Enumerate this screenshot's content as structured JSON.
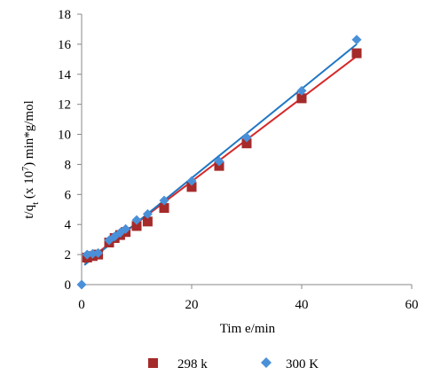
{
  "chart_data": {
    "type": "scatter",
    "title": "",
    "xlabel": "Tim e/min",
    "ylabel": "t/q_t (x 10⁷) min*g/mol",
    "ylabel_parts": {
      "t": "t/q",
      "sub": "t",
      "rest": " (x 10",
      "sup": "7",
      "tail": ") min*g/mol"
    },
    "xlim": [
      0,
      60
    ],
    "ylim": [
      0,
      18
    ],
    "xticks": [
      "0",
      "20",
      "40",
      "60"
    ],
    "yticks": [
      "0",
      "2",
      "4",
      "6",
      "8",
      "10",
      "12",
      "14",
      "16",
      "18"
    ],
    "grid": false,
    "legend_position": "bottom",
    "series": [
      {
        "name": "298 k",
        "marker": "square",
        "color": "#a52a2a",
        "line_color": "#d62728",
        "x": [
          1,
          2,
          3,
          5,
          6,
          7,
          8,
          10,
          12,
          15,
          20,
          25,
          30,
          40,
          50
        ],
        "y": [
          1.8,
          1.9,
          2.0,
          2.8,
          3.1,
          3.3,
          3.5,
          3.9,
          4.2,
          5.1,
          6.5,
          7.9,
          9.4,
          12.4,
          15.4
        ],
        "fit": {
          "x": [
            0.5,
            50
          ],
          "y": [
            1.45,
            15.2
          ]
        }
      },
      {
        "name": "300 K",
        "marker": "diamond",
        "color": "#4a90d9",
        "line_color": "#1f77c4",
        "x": [
          0,
          1,
          2,
          3,
          5,
          6,
          7,
          8,
          10,
          12,
          15,
          20,
          25,
          30,
          40,
          50
        ],
        "y": [
          0,
          2.0,
          2.05,
          2.1,
          2.95,
          3.2,
          3.45,
          3.7,
          4.3,
          4.7,
          5.6,
          6.9,
          8.2,
          9.8,
          12.9,
          16.3
        ],
        "fit": {
          "x": [
            0.5,
            50
          ],
          "y": [
            1.3,
            16.0
          ]
        }
      }
    ]
  }
}
